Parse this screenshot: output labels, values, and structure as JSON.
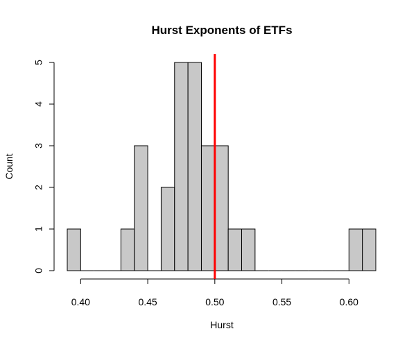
{
  "chart_data": {
    "type": "histogram",
    "title": "Hurst Exponents of ETFs",
    "xlabel": "Hurst",
    "ylabel": "Count",
    "bin_width": 0.01,
    "bins": [
      {
        "x0": 0.39,
        "x1": 0.4,
        "count": 1
      },
      {
        "x0": 0.4,
        "x1": 0.41,
        "count": 0
      },
      {
        "x0": 0.41,
        "x1": 0.42,
        "count": 0
      },
      {
        "x0": 0.42,
        "x1": 0.43,
        "count": 0
      },
      {
        "x0": 0.43,
        "x1": 0.44,
        "count": 1
      },
      {
        "x0": 0.44,
        "x1": 0.45,
        "count": 3
      },
      {
        "x0": 0.45,
        "x1": 0.46,
        "count": 0
      },
      {
        "x0": 0.46,
        "x1": 0.47,
        "count": 2
      },
      {
        "x0": 0.47,
        "x1": 0.48,
        "count": 5
      },
      {
        "x0": 0.48,
        "x1": 0.49,
        "count": 5
      },
      {
        "x0": 0.49,
        "x1": 0.5,
        "count": 3
      },
      {
        "x0": 0.5,
        "x1": 0.51,
        "count": 3
      },
      {
        "x0": 0.51,
        "x1": 0.52,
        "count": 1
      },
      {
        "x0": 0.52,
        "x1": 0.53,
        "count": 1
      },
      {
        "x0": 0.53,
        "x1": 0.54,
        "count": 0
      },
      {
        "x0": 0.54,
        "x1": 0.55,
        "count": 0
      },
      {
        "x0": 0.55,
        "x1": 0.56,
        "count": 0
      },
      {
        "x0": 0.56,
        "x1": 0.57,
        "count": 0
      },
      {
        "x0": 0.57,
        "x1": 0.58,
        "count": 0
      },
      {
        "x0": 0.58,
        "x1": 0.59,
        "count": 0
      },
      {
        "x0": 0.59,
        "x1": 0.6,
        "count": 0
      },
      {
        "x0": 0.6,
        "x1": 0.61,
        "count": 1
      },
      {
        "x0": 0.61,
        "x1": 0.62,
        "count": 1
      }
    ],
    "xlim": [
      0.39,
      0.62
    ],
    "ylim": [
      0,
      5
    ],
    "x_ticks": [
      {
        "value": 0.4,
        "label": "0.40"
      },
      {
        "value": 0.45,
        "label": "0.45"
      },
      {
        "value": 0.5,
        "label": "0.50"
      },
      {
        "value": 0.55,
        "label": "0.55"
      },
      {
        "value": 0.6,
        "label": "0.60"
      }
    ],
    "y_ticks": [
      {
        "value": 0,
        "label": "0"
      },
      {
        "value": 1,
        "label": "1"
      },
      {
        "value": 2,
        "label": "2"
      },
      {
        "value": 3,
        "label": "3"
      },
      {
        "value": 4,
        "label": "4"
      },
      {
        "value": 5,
        "label": "5"
      }
    ],
    "reference_line": {
      "x": 0.5,
      "color": "#ff0000"
    },
    "bar_color": "#c8c8c8",
    "grid": false,
    "legend": "none"
  }
}
